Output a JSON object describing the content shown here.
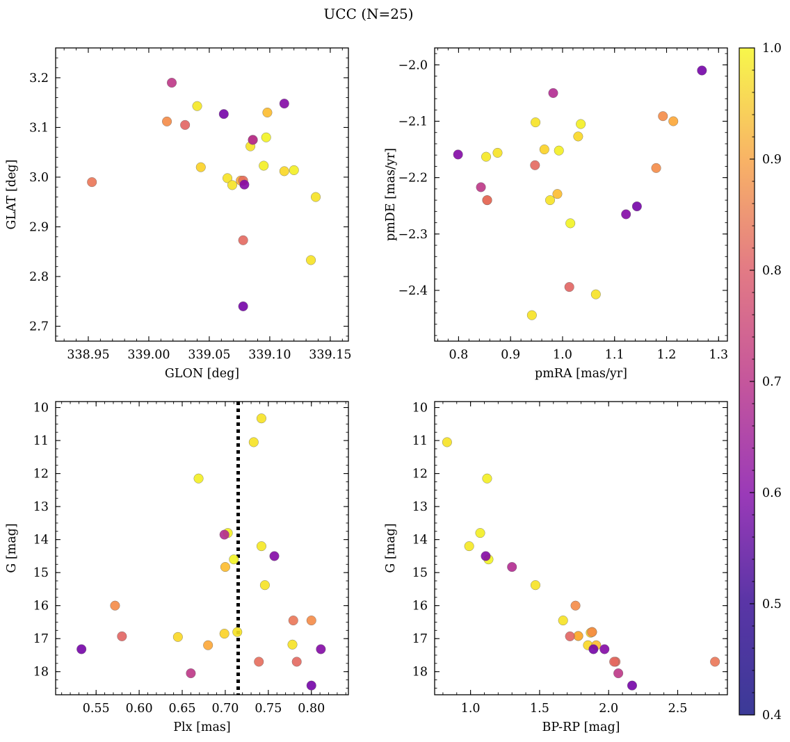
{
  "chart_data": {
    "title": "UCC (N=25)",
    "colorbar": {
      "min": 0.4,
      "max": 1.0,
      "colormap": "plasma",
      "ticks": [
        0.4,
        0.5,
        0.6,
        0.7,
        0.8,
        0.9,
        1.0
      ],
      "tick_labels": [
        "0.4",
        "0.5",
        "0.6",
        "0.7",
        "0.8",
        "0.9",
        "1.0"
      ]
    },
    "membership_probability": [
      0.74,
      0.96,
      0.89,
      0.79,
      0.72,
      0.96,
      0.93,
      0.71,
      0.7,
      0.58,
      0.85,
      0.94,
      0.79,
      0.42,
      0.96,
      0.98,
      0.99,
      0.98,
      0.96,
      0.96,
      0.97,
      0.45,
      0.45,
      0.42,
      0.55
    ],
    "panels": [
      {
        "type": "scatter",
        "xlabel": "GLON [deg]",
        "ylabel": "GLAT [deg]",
        "xlim": [
          338.923,
          339.165
        ],
        "ylim": [
          2.67,
          3.26
        ],
        "y_inverted": false,
        "xticks": [
          338.95,
          339.0,
          339.05,
          339.1,
          339.15
        ],
        "xtick_labels": [
          "338.95",
          "339.00",
          "339.05",
          "339.10",
          "339.15"
        ],
        "yticks": [
          2.7,
          2.8,
          2.9,
          3.0,
          3.1,
          3.2
        ],
        "ytick_labels": [
          "2.7",
          "2.8",
          "2.9",
          "3.0",
          "3.1",
          "3.2"
        ],
        "x": [
          338.953,
          339.065,
          339.098,
          339.015,
          339.078,
          339.069,
          339.043,
          339.078,
          339.03,
          339.019,
          339.076,
          339.112,
          339.086,
          339.062,
          339.084,
          339.095,
          339.097,
          339.12,
          339.138,
          339.134,
          339.04,
          339.079,
          339.112,
          339.078,
          339.086
        ],
        "y": [
          2.99,
          2.998,
          3.13,
          3.112,
          2.993,
          2.984,
          3.02,
          2.873,
          3.105,
          3.19,
          2.993,
          3.012,
          3.075,
          3.127,
          3.062,
          3.023,
          3.08,
          3.014,
          2.96,
          2.833,
          3.143,
          2.985,
          3.148,
          2.74,
          3.075
        ]
      },
      {
        "type": "scatter",
        "xlabel": "pmRA [mas/yr]",
        "ylabel": "pmDE [mas/yr]",
        "xlim": [
          0.754,
          1.317
        ],
        "ylim": [
          -2.49,
          -1.97
        ],
        "y_inverted": false,
        "xticks": [
          0.8,
          0.9,
          1.0,
          1.1,
          1.2,
          1.3
        ],
        "xtick_labels": [
          "0.8",
          "0.9",
          "1.0",
          "1.1",
          "1.2",
          "1.3"
        ],
        "yticks": [
          -2.4,
          -2.3,
          -2.2,
          -2.1,
          -2.0
        ],
        "ytick_labels": [
          "−2.4",
          "−2.3",
          "−2.2",
          "−2.1",
          "−2.0"
        ],
        "x": [
          0.855,
          0.875,
          0.99,
          1.193,
          0.855,
          0.976,
          0.965,
          0.947,
          1.013,
          0.843,
          1.213,
          1.03,
          1.18,
          1.268,
          0.948,
          0.993,
          1.015,
          1.035,
          1.064,
          0.941,
          0.853,
          0.799,
          1.122,
          1.143,
          0.982
        ],
        "y": [
          -2.24,
          -2.156,
          -2.229,
          -2.091,
          -2.24,
          -2.24,
          -2.15,
          -2.178,
          -2.394,
          -2.217,
          -2.1,
          -2.127,
          -2.183,
          -2.01,
          -2.102,
          -2.152,
          -2.281,
          -2.105,
          -2.407,
          -2.444,
          -2.163,
          -2.159,
          -2.265,
          -2.251,
          -2.05
        ]
      },
      {
        "type": "scatter",
        "xlabel": "Plx [mas]",
        "ylabel": "G [mag]",
        "xlim": [
          0.503,
          0.843
        ],
        "ylim": [
          18.7,
          9.82
        ],
        "y_inverted": true,
        "vline": {
          "x": 0.715,
          "style": "dotted",
          "color": "#000000"
        },
        "xticks": [
          0.55,
          0.6,
          0.65,
          0.7,
          0.75,
          0.8
        ],
        "xtick_labels": [
          "0.55",
          "0.60",
          "0.65",
          "0.70",
          "0.75",
          "0.80"
        ],
        "yticks": [
          10,
          11,
          12,
          13,
          14,
          15,
          16,
          17,
          18
        ],
        "ytick_labels": [
          "10",
          "11",
          "12",
          "13",
          "14",
          "15",
          "16",
          "17",
          "18"
        ],
        "x": [
          0.779,
          0.742,
          0.7,
          0.572,
          0.739,
          0.778,
          0.699,
          0.783,
          0.58,
          0.66,
          0.68,
          0.645,
          0.8,
          0.533,
          0.714,
          0.703,
          0.71,
          0.669,
          0.746,
          0.733,
          0.742,
          0.757,
          0.811,
          0.8,
          0.699
        ],
        "y": [
          16.45,
          10.33,
          14.83,
          16.0,
          17.7,
          17.18,
          16.85,
          17.7,
          16.93,
          18.05,
          17.2,
          16.95,
          16.45,
          17.32,
          16.8,
          13.8,
          14.6,
          12.15,
          15.38,
          11.05,
          14.2,
          14.5,
          17.32,
          18.42,
          13.85
        ]
      },
      {
        "type": "scatter",
        "xlabel": "BP-RP [mag]",
        "ylabel": "G [mag]",
        "xlim": [
          0.74,
          2.86
        ],
        "ylim": [
          18.7,
          9.82
        ],
        "y_inverted": true,
        "xticks": [
          1.0,
          1.5,
          2.0,
          2.5
        ],
        "xtick_labels": [
          "1.0",
          "1.5",
          "2.0",
          "2.5"
        ],
        "yticks": [
          10,
          11,
          12,
          13,
          14,
          15,
          16,
          17,
          18
        ],
        "ytick_labels": [
          "10",
          "11",
          "12",
          "13",
          "14",
          "15",
          "16",
          "17",
          "18"
        ],
        "x": [
          2.77,
          1.78,
          1.91,
          1.76,
          2.05,
          1.67,
          1.87,
          2.04,
          1.72,
          2.07,
          1.78,
          1.85,
          1.88,
          1.89,
          1.88,
          1.07,
          1.13,
          1.12,
          1.47,
          0.83,
          0.99,
          1.11,
          1.97,
          2.17,
          1.3
        ],
        "y": [
          17.7,
          16.92,
          17.2,
          16.0,
          17.7,
          16.45,
          16.82,
          17.7,
          16.93,
          18.05,
          16.92,
          17.2,
          16.8,
          17.32,
          16.8,
          13.8,
          14.6,
          12.15,
          15.38,
          11.05,
          14.2,
          14.5,
          17.32,
          18.42,
          14.83
        ]
      }
    ]
  }
}
